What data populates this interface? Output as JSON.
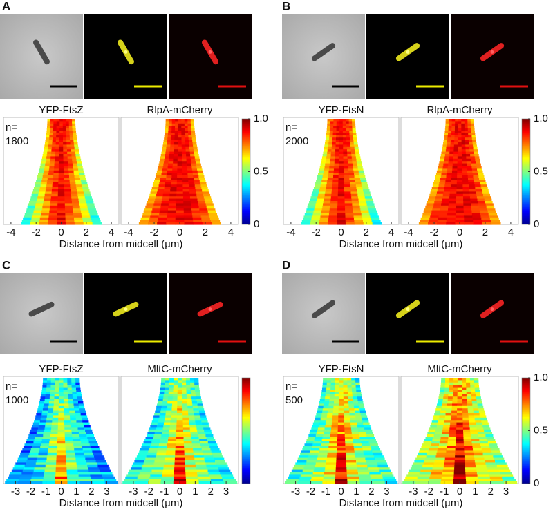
{
  "panels": [
    {
      "label": "A",
      "titles": [
        "YFP-FtsZ",
        "RlpA-mCherry"
      ],
      "n_label": "n=",
      "n": 1800,
      "xlim": [
        -4.6,
        4.6
      ],
      "xticks": [
        -4,
        -2,
        0,
        2,
        4
      ],
      "xlabel": "Distance from midcell (µm)",
      "clim": [
        0,
        1
      ],
      "colorbar_ticks": [
        0,
        0.5,
        {
          "value": 1,
          "label": "1.0"
        }
      ]
    },
    {
      "label": "B",
      "titles": [
        "YFP-FtsN",
        "RlpA-mCherry"
      ],
      "n_label": "n=",
      "n": 2000,
      "xlim": [
        -4.6,
        4.6
      ],
      "xticks": [
        -4,
        -2,
        0,
        2,
        4
      ],
      "xlabel": "Distance from midcell (µm)",
      "clim": [
        0,
        1
      ],
      "colorbar_ticks": [
        0,
        0.5,
        {
          "value": 1,
          "label": "1.0"
        }
      ]
    },
    {
      "label": "C",
      "titles": [
        "YFP-FtsZ",
        "MltC-mCherry"
      ],
      "n_label": "n=",
      "n": 1000,
      "xlim": [
        -3.8,
        3.8
      ],
      "xticks": [
        -3,
        -2,
        -1,
        0,
        1,
        2,
        3
      ],
      "xlabel": "Distance from midcell (µm)",
      "clim": [
        0,
        1
      ],
      "colorbar_ticks": []
    },
    {
      "label": "D",
      "titles": [
        "YFP-FtsN",
        "MltC-mCherry"
      ],
      "n_label": "n=",
      "n": 500,
      "xlim": [
        -3.8,
        3.8
      ],
      "xticks": [
        -3,
        -2,
        -1,
        0,
        1,
        2,
        3
      ],
      "xlabel": "Distance from midcell (µm)",
      "clim": [
        0,
        1
      ],
      "colorbar_ticks": [
        0,
        0.5,
        {
          "value": 1,
          "label": "1.0"
        }
      ]
    }
  ]
}
